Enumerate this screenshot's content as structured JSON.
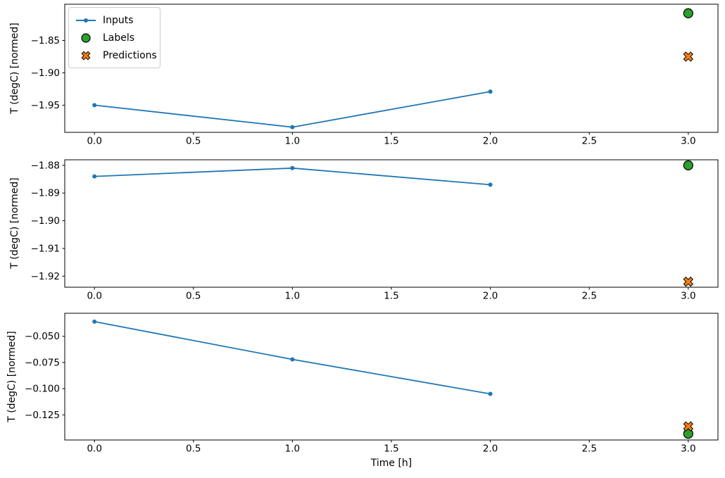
{
  "figure": {
    "xlabel": "Time [h]",
    "background": "#ffffff",
    "axes_color": "#000000",
    "legend": {
      "position": "upper-left-subplot-1",
      "items": [
        {
          "label": "Inputs",
          "marker": "line-with-dot",
          "color": "#1f77b4"
        },
        {
          "label": "Labels",
          "marker": "filled-circle",
          "color": "#2ca02c"
        },
        {
          "label": "Predictions",
          "marker": "filled-x",
          "color": "#ff7f0e"
        }
      ]
    },
    "colors": {
      "inputs": "#1f77b4",
      "labels": "#2ca02c",
      "predictions": "#ff7f0e",
      "marker_edge": "#000000"
    }
  },
  "chart_data": [
    {
      "type": "line",
      "title": "",
      "xlabel": "",
      "ylabel": "T (degC) [normed]",
      "grid": false,
      "xlim": [
        -0.15,
        3.15
      ],
      "ylim": [
        -1.992,
        -1.794
      ],
      "x_ticks": [
        0.0,
        0.5,
        1.0,
        1.5,
        2.0,
        2.5,
        3.0
      ],
      "x_tick_labels": [
        "0.0",
        "0.5",
        "1.0",
        "1.5",
        "2.0",
        "2.5",
        "3.0"
      ],
      "y_ticks": [
        -1.85,
        -1.9,
        -1.95
      ],
      "y_tick_labels": [
        "−1.85",
        "−1.90",
        "−1.95"
      ],
      "series": [
        {
          "name": "Inputs",
          "kind": "line",
          "color": "#1f77b4",
          "x": [
            0,
            1,
            2
          ],
          "y": [
            -1.95,
            -1.984,
            -1.929
          ]
        },
        {
          "name": "Labels",
          "kind": "scatter-circle",
          "color": "#2ca02c",
          "x": [
            3
          ],
          "y": [
            -1.808
          ]
        },
        {
          "name": "Predictions",
          "kind": "scatter-x",
          "color": "#ff7f0e",
          "x": [
            3
          ],
          "y": [
            -1.875
          ]
        }
      ]
    },
    {
      "type": "line",
      "title": "",
      "xlabel": "",
      "ylabel": "T (degC) [normed]",
      "grid": false,
      "xlim": [
        -0.15,
        3.15
      ],
      "ylim": [
        -1.924,
        -1.878
      ],
      "x_ticks": [
        0.0,
        0.5,
        1.0,
        1.5,
        2.0,
        2.5,
        3.0
      ],
      "x_tick_labels": [
        "0.0",
        "0.5",
        "1.0",
        "1.5",
        "2.0",
        "2.5",
        "3.0"
      ],
      "y_ticks": [
        -1.88,
        -1.89,
        -1.9,
        -1.91,
        -1.92
      ],
      "y_tick_labels": [
        "−1.88",
        "−1.89",
        "−1.90",
        "−1.91",
        "−1.92"
      ],
      "series": [
        {
          "name": "Inputs",
          "kind": "line",
          "color": "#1f77b4",
          "x": [
            0,
            1,
            2
          ],
          "y": [
            -1.884,
            -1.881,
            -1.887
          ]
        },
        {
          "name": "Labels",
          "kind": "scatter-circle",
          "color": "#2ca02c",
          "x": [
            3
          ],
          "y": [
            -1.88
          ]
        },
        {
          "name": "Predictions",
          "kind": "scatter-x",
          "color": "#ff7f0e",
          "x": [
            3
          ],
          "y": [
            -1.922
          ]
        }
      ]
    },
    {
      "type": "line",
      "title": "",
      "xlabel": "Time [h]",
      "ylabel": "T (degC) [normed]",
      "grid": false,
      "xlim": [
        -0.15,
        3.15
      ],
      "ylim": [
        -0.149,
        -0.028
      ],
      "x_ticks": [
        0.0,
        0.5,
        1.0,
        1.5,
        2.0,
        2.5,
        3.0
      ],
      "x_tick_labels": [
        "0.0",
        "0.5",
        "1.0",
        "1.5",
        "2.0",
        "2.5",
        "3.0"
      ],
      "y_ticks": [
        -0.05,
        -0.075,
        -0.1,
        -0.125
      ],
      "y_tick_labels": [
        "−0.050",
        "−0.075",
        "−0.100",
        "−0.125"
      ],
      "series": [
        {
          "name": "Inputs",
          "kind": "line",
          "color": "#1f77b4",
          "x": [
            0,
            1,
            2
          ],
          "y": [
            -0.036,
            -0.072,
            -0.105
          ]
        },
        {
          "name": "Labels",
          "kind": "scatter-circle",
          "color": "#2ca02c",
          "x": [
            3
          ],
          "y": [
            -0.143
          ]
        },
        {
          "name": "Predictions",
          "kind": "scatter-x",
          "color": "#ff7f0e",
          "x": [
            3
          ],
          "y": [
            -0.136
          ]
        }
      ]
    }
  ]
}
